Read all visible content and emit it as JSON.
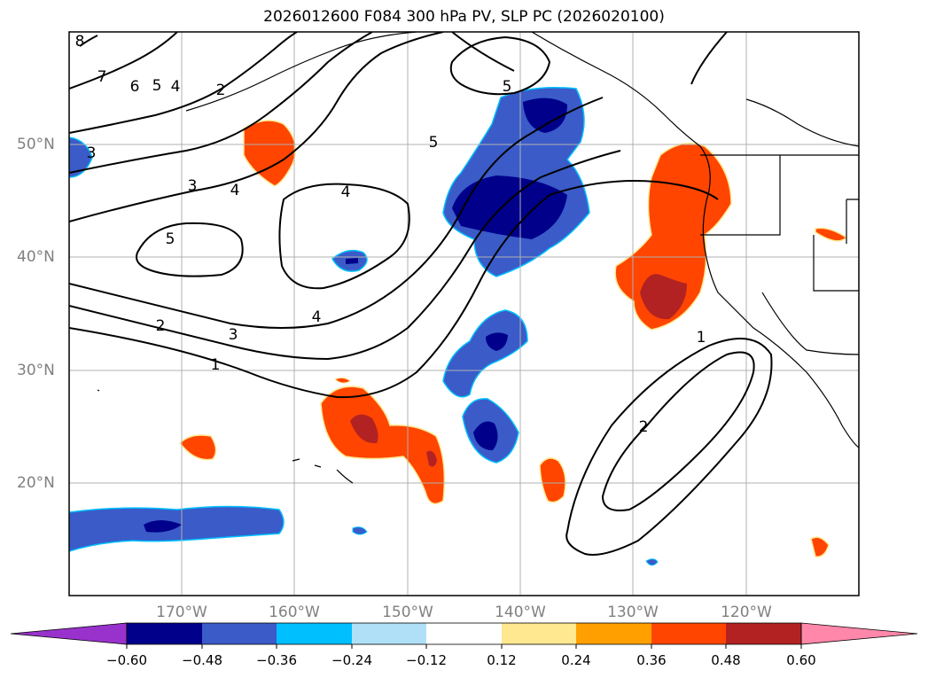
{
  "title": "2026012600 F084 300 hPa PV, SLP PC (2026020100)",
  "lat_labels": [
    {
      "text": "50°N",
      "lat": 50
    },
    {
      "text": "40°N",
      "lat": 40
    },
    {
      "text": "30°N",
      "lat": 30
    },
    {
      "text": "20°N",
      "lat": 20
    }
  ],
  "lon_labels": [
    {
      "text": "170°W",
      "lon": -170
    },
    {
      "text": "160°W",
      "lon": -160
    },
    {
      "text": "150°W",
      "lon": -150
    },
    {
      "text": "140°W",
      "lon": -140
    },
    {
      "text": "130°W",
      "lon": -130
    },
    {
      "text": "120°W",
      "lon": -120
    }
  ],
  "contour_labels": [
    "8",
    "7",
    "6",
    "5",
    "4",
    "2",
    "3",
    "3",
    "4",
    "5",
    "4",
    "4",
    "3",
    "2",
    "1",
    "5",
    "5",
    "1",
    "2"
  ],
  "colorbar": {
    "ticks": [
      "−0.60",
      "−0.48",
      "−0.36",
      "−0.24",
      "−0.12",
      "0.12",
      "0.24",
      "0.36",
      "0.48",
      "0.60"
    ],
    "colors": [
      "#9932cc",
      "#00008b",
      "#3a5bc8",
      "#00bfff",
      "#b0e0f8",
      "#ffffff",
      "#ffe890",
      "#ffa000",
      "#ff4500",
      "#b22222",
      "#ff88aa"
    ]
  }
}
